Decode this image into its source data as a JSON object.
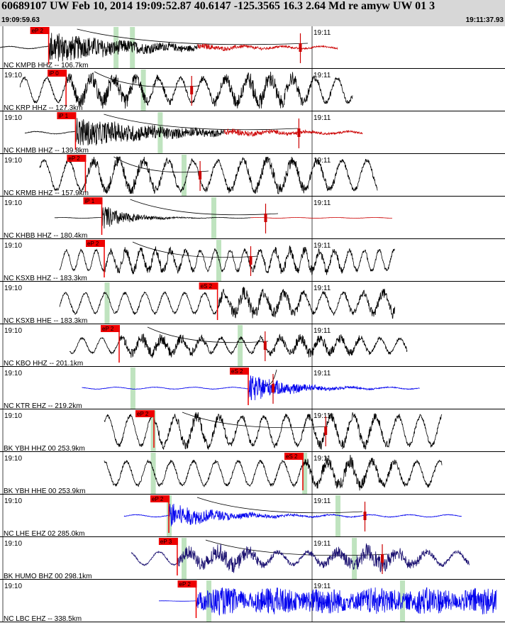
{
  "header": {
    "title": "60689107 UW Feb 10, 2014 19:09:52.87    40.6147 -125.3565 16.3 2.64 Md re amyw UW 01   3",
    "start_time": "19:09:59.63",
    "end_time": "19:11:37.93"
  },
  "colors": {
    "text": "#dd0000",
    "pick_box": "#ee0000",
    "green_marker": "#bfe3bf",
    "trace_black": "#000000",
    "trace_blue": "#0000ee",
    "trace_navy": "#1a1070",
    "trace_red": "#cc0000",
    "gridline": "#444444"
  },
  "chart_data": {
    "type": "line",
    "title": "60689107 UW Feb 10, 2014 19:09:52.87    40.6147 -125.3565 16.3 2.64 Md re amyw UW 01   3",
    "x_unit": "time",
    "xlim": [
      "19:09:59.63",
      "19:11:37.93"
    ],
    "tick_labels": [
      "19:10",
      "19:11"
    ],
    "grid": true,
    "traces": [
      {
        "name": "NC KMPB HHZ -- 106.7km",
        "pick": "eP 2",
        "color": "black",
        "tail_red": true,
        "minute_label": false,
        "pick_at": 0.098,
        "start": 0.0,
        "end": 0.68,
        "green": [
          0.233,
          0.266
        ],
        "red_spike": 0.605,
        "curve_end": 0.62,
        "amp": 0.12,
        "signal": {
          "kind": "event",
          "a": 0.9,
          "decay": 0.17
        }
      },
      {
        "name": "NC KRP HHZ -- 127.3km",
        "pick": "iP 0",
        "color": "black",
        "tail_red": false,
        "minute_label": true,
        "pick_at": 0.133,
        "start": 0.04,
        "end": 0.71,
        "green": [
          0.288
        ],
        "red_spike": 0.386,
        "curve_end": 0.4,
        "amp": 0.65,
        "signal": {
          "kind": "wave",
          "a": 0.45,
          "period": 0.045
        }
      },
      {
        "name": "NC KHMB HHZ -- 139.8km",
        "pick": "iP 1",
        "color": "black",
        "tail_red": true,
        "minute_label": true,
        "pick_at": 0.152,
        "start": 0.05,
        "end": 0.73,
        "green": [
          0.322
        ],
        "red_spike": 0.602,
        "curve_end": 0.6,
        "amp": 0.12,
        "signal": {
          "kind": "event",
          "a": 0.8,
          "decay": 0.2
        }
      },
      {
        "name": "NC KRMB HHZ -- 157.9km",
        "pick": "eP 2",
        "color": "black",
        "tail_red": false,
        "minute_label": true,
        "pick_at": 0.172,
        "start": 0.08,
        "end": 0.76,
        "green": [
          0.37
        ],
        "red_spike": 0.403,
        "curve_end": 0.42,
        "amp": 0.8,
        "signal": {
          "kind": "wave",
          "a": 0.3,
          "period": 0.05
        }
      },
      {
        "name": "NC KHBB HHZ -- 180.4km",
        "pick": "iP 1",
        "color": "black",
        "tail_red": true,
        "minute_label": true,
        "pick_at": 0.205,
        "start": 0.11,
        "end": 0.79,
        "green": [
          0.43
        ],
        "red_spike": 0.535,
        "curve_end": 0.56,
        "amp": 0.04,
        "signal": {
          "kind": "event",
          "a": 0.75,
          "decay": 0.05
        }
      },
      {
        "name": "NC KSXB HHZ -- 183.3km",
        "pick": "eP 2",
        "color": "black",
        "tail_red": false,
        "minute_label": true,
        "pick_at": 0.21,
        "start": 0.12,
        "end": 0.795,
        "green": [
          0.44
        ],
        "red_spike": 0.505,
        "curve_end": 0.52,
        "amp": 0.55,
        "signal": {
          "kind": "wave",
          "a": 0.25,
          "period": 0.03
        }
      },
      {
        "name": "NC KSXB HHE -- 183.3km",
        "pick": "eS 2",
        "color": "black",
        "tail_red": false,
        "minute_label": true,
        "pick_at": 0.438,
        "start": 0.12,
        "end": 0.795,
        "green": [
          0.215
        ],
        "red_spike": -1,
        "curve_end": -1,
        "amp": 0.55,
        "signal": {
          "kind": "wave",
          "a": 0.35,
          "period": 0.04
        }
      },
      {
        "name": "NC KBO HHZ -- 201.1km",
        "pick": "eP 2",
        "color": "black",
        "tail_red": false,
        "minute_label": true,
        "pick_at": 0.24,
        "start": 0.14,
        "end": 0.82,
        "green": [
          0.483
        ],
        "red_spike": 0.534,
        "curve_end": 0.54,
        "amp": 0.4,
        "signal": {
          "kind": "wave",
          "a": 0.3,
          "period": 0.04
        }
      },
      {
        "name": "NC KTR EHZ -- 219.2km",
        "pick": "eS 2",
        "color": "blue",
        "tail_red": false,
        "minute_label": true,
        "pick_at": 0.5,
        "start": 0.165,
        "end": 0.845,
        "green": [
          0.267
        ],
        "red_spike": 0.55,
        "curve_end": 0.53,
        "amp": 0.1,
        "signal": {
          "kind": "event",
          "a": 0.8,
          "decay": 0.08
        }
      },
      {
        "name": "BK YBH HHZ 00 253.9km",
        "pick": "eP 2",
        "color": "black",
        "tail_red": false,
        "minute_label": true,
        "pick_at": 0.31,
        "start": 0.21,
        "end": 0.89,
        "green": [
          0.308
        ],
        "red_spike": 0.656,
        "curve_end": 0.66,
        "amp": 0.8,
        "signal": {
          "kind": "wave",
          "a": 0.25,
          "period": 0.045
        }
      },
      {
        "name": "BK YBH HHE 00 253.9km",
        "pick": "eS 2",
        "color": "black",
        "tail_red": false,
        "minute_label": true,
        "pick_at": 0.61,
        "start": 0.21,
        "end": 0.89,
        "green": [
          0.308,
          0.613
        ],
        "red_spike": -1,
        "curve_end": -1,
        "amp": 0.65,
        "signal": {
          "kind": "wave",
          "a": 0.35,
          "period": 0.045
        }
      },
      {
        "name": "NC LHE EHZ 02 285.0km",
        "pick": "eP 2",
        "color": "blue",
        "tail_red": false,
        "minute_label": true,
        "pick_at": 0.34,
        "start": 0.25,
        "end": 0.93,
        "green": [
          0.34,
          0.68
        ],
        "red_spike": 0.735,
        "curve_end": 0.73,
        "amp": 0.12,
        "signal": {
          "kind": "event",
          "a": 0.7,
          "decay": 0.1
        }
      },
      {
        "name": "BK HUMO BHZ 00 298.1km",
        "pick": "eP 3",
        "color": "navy",
        "tail_red": false,
        "minute_label": true,
        "pick_at": 0.357,
        "start": 0.265,
        "end": 0.945,
        "green": [
          0.37,
          0.713
        ],
        "red_spike": 0.77,
        "curve_end": 0.78,
        "amp": 0.35,
        "signal": {
          "kind": "wave",
          "a": 0.45,
          "period": 0.06
        }
      },
      {
        "name": "NC LBC EHZ -- 338.5km",
        "pick": "eP 2",
        "color": "blue",
        "tail_red": false,
        "minute_label": true,
        "pick_at": 0.395,
        "start": 0.32,
        "end": 1.0,
        "green": [
          0.42,
          0.81
        ],
        "red_spike": -1,
        "curve_end": -1,
        "amp": 0.02,
        "signal": {
          "kind": "noise",
          "a": 0.75,
          "decay": 0.02
        }
      }
    ]
  }
}
